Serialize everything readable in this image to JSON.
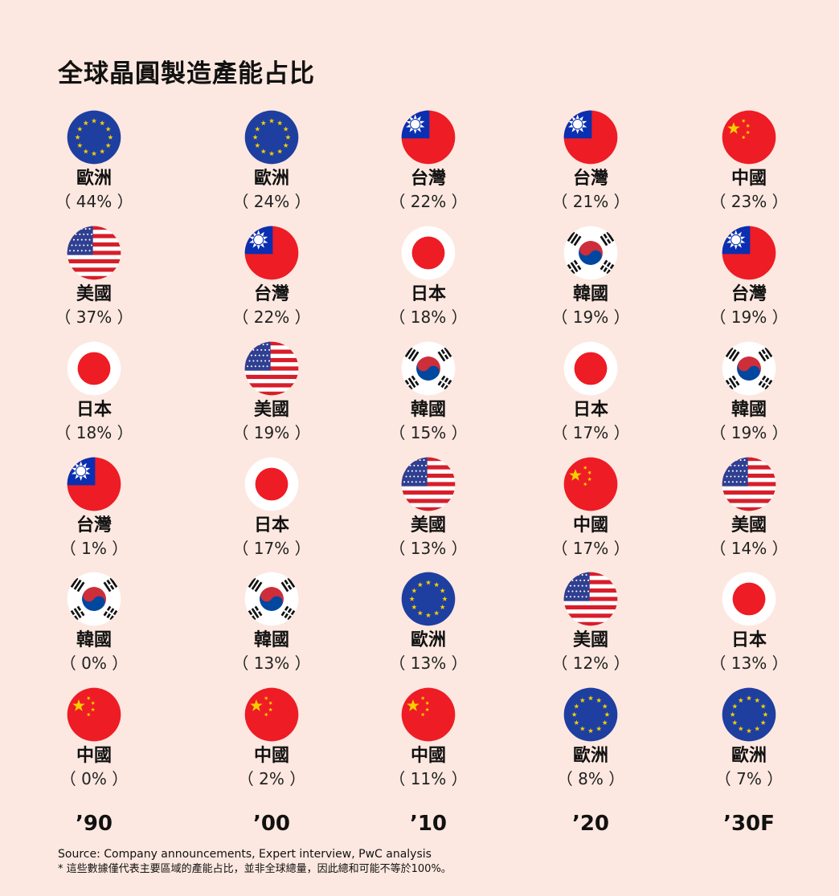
{
  "title": "全球晶圓製造產能占比",
  "source": "Source: Company announcements, Expert interview, PwC analysis",
  "footnote": "* 這些數據僅代表主要區域的產能占比，並非全球總量，因此總和可能不等於100%。",
  "flag_colors": {
    "eu": "#1e3fa0",
    "star": "#f5d000",
    "red": "#ee1c25",
    "blue": "#0a2fb0",
    "usa_blue": "#2f3f91"
  },
  "chart_data": {
    "type": "table",
    "title": "全球晶圓製造產能占比",
    "columns": [
      {
        "year": "’90",
        "entries": [
          {
            "flag": "eu-flag-icon",
            "region": "歐洲",
            "pct": "（ 44% ）",
            "value": 44
          },
          {
            "flag": "usa-flag-icon",
            "region": "美國",
            "pct": "（ 37% ）",
            "value": 37
          },
          {
            "flag": "japan-flag-icon",
            "region": "日本",
            "pct": "（ 18% ）",
            "value": 18
          },
          {
            "flag": "taiwan-flag-icon",
            "region": "台灣",
            "pct": "（ 1% ）",
            "value": 1
          },
          {
            "flag": "korea-flag-icon",
            "region": "韓國",
            "pct": "（ 0% ）",
            "value": 0
          },
          {
            "flag": "china-flag-icon",
            "region": "中國",
            "pct": "（ 0% ）",
            "value": 0
          }
        ]
      },
      {
        "year": "’00",
        "entries": [
          {
            "flag": "eu-flag-icon",
            "region": "歐洲",
            "pct": "（ 24% ）",
            "value": 24
          },
          {
            "flag": "taiwan-flag-icon",
            "region": "台灣",
            "pct": "（ 22% ）",
            "value": 22
          },
          {
            "flag": "usa-flag-icon",
            "region": "美國",
            "pct": "（ 19% ）",
            "value": 19
          },
          {
            "flag": "japan-flag-icon",
            "region": "日本",
            "pct": "（ 17% ）",
            "value": 17
          },
          {
            "flag": "korea-flag-icon",
            "region": "韓國",
            "pct": "（ 13% ）",
            "value": 13
          },
          {
            "flag": "china-flag-icon",
            "region": "中國",
            "pct": "（ 2% ）",
            "value": 2
          }
        ]
      },
      {
        "year": "’10",
        "entries": [
          {
            "flag": "taiwan-flag-icon",
            "region": "台灣",
            "pct": "（ 22% ）",
            "value": 22
          },
          {
            "flag": "japan-flag-icon",
            "region": "日本",
            "pct": "（ 18% ）",
            "value": 18
          },
          {
            "flag": "korea-flag-icon",
            "region": "韓國",
            "pct": "（ 15% ）",
            "value": 15
          },
          {
            "flag": "usa-flag-icon",
            "region": "美國",
            "pct": "（ 13% ）",
            "value": 13
          },
          {
            "flag": "eu-flag-icon",
            "region": "歐洲",
            "pct": "（ 13% ）",
            "value": 13
          },
          {
            "flag": "china-flag-icon",
            "region": "中國",
            "pct": "（ 11% ）",
            "value": 11
          }
        ]
      },
      {
        "year": "’20",
        "entries": [
          {
            "flag": "taiwan-flag-icon",
            "region": "台灣",
            "pct": "（ 21% ）",
            "value": 21
          },
          {
            "flag": "korea-flag-icon",
            "region": "韓國",
            "pct": "（ 19% ）",
            "value": 19
          },
          {
            "flag": "japan-flag-icon",
            "region": "日本",
            "pct": "（ 17% ）",
            "value": 17
          },
          {
            "flag": "china-flag-icon",
            "region": "中國",
            "pct": "（ 17% ）",
            "value": 17
          },
          {
            "flag": "usa-flag-icon",
            "region": "美國",
            "pct": "（ 12% ）",
            "value": 12
          },
          {
            "flag": "eu-flag-icon",
            "region": "歐洲",
            "pct": "（ 8% ）",
            "value": 8
          }
        ]
      },
      {
        "year": "’30F",
        "entries": [
          {
            "flag": "china-flag-icon",
            "region": "中國",
            "pct": "（ 23% ）",
            "value": 23
          },
          {
            "flag": "taiwan-flag-icon",
            "region": "台灣",
            "pct": "（ 19% ）",
            "value": 19
          },
          {
            "flag": "korea-flag-icon",
            "region": "韓國",
            "pct": "（ 19% ）",
            "value": 19
          },
          {
            "flag": "usa-flag-icon",
            "region": "美國",
            "pct": "（ 14% ）",
            "value": 14
          },
          {
            "flag": "japan-flag-icon",
            "region": "日本",
            "pct": "（ 13% ）",
            "value": 13
          },
          {
            "flag": "eu-flag-icon",
            "region": "歐洲",
            "pct": "（ 7% ）",
            "value": 7
          }
        ]
      }
    ]
  }
}
